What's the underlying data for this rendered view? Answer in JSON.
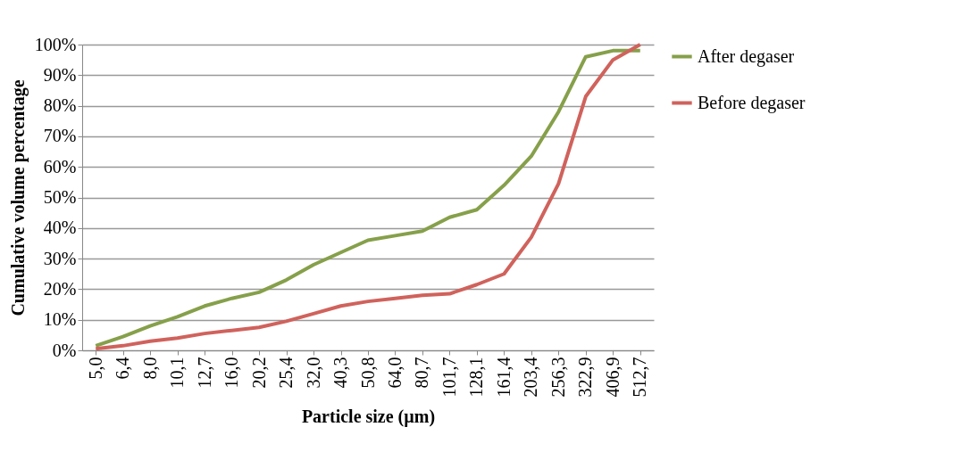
{
  "chart_data": {
    "type": "line",
    "xlabel": "Particle size (µm)",
    "ylabel": "Cumulative volume percentage",
    "categories": [
      "5,0",
      "6,4",
      "8,0",
      "10,1",
      "12,7",
      "16,0",
      "20,2",
      "25,4",
      "32,0",
      "40,3",
      "50,8",
      "64,0",
      "80,7",
      "101,7",
      "128,1",
      "161,4",
      "203,4",
      "256,3",
      "322,9",
      "406,9",
      "512,7"
    ],
    "series": [
      {
        "name": "After degaser",
        "color": "#86a04a",
        "values": [
          1.5,
          4.5,
          8,
          11,
          14.5,
          17,
          19,
          23,
          28,
          32,
          36,
          37.5,
          39,
          43.5,
          46,
          54,
          63.5,
          78,
          96,
          98,
          98
        ]
      },
      {
        "name": "Before degaser",
        "color": "#d0625c",
        "values": [
          0.5,
          1.5,
          3,
          4,
          5.5,
          6.5,
          7.5,
          9.5,
          12,
          14.5,
          16,
          17,
          18,
          18.5,
          21.5,
          25,
          37,
          54.5,
          83,
          95,
          100
        ]
      }
    ],
    "ylim": [
      0,
      100
    ],
    "yticks": [
      {
        "value": 0,
        "label": "0%"
      },
      {
        "value": 10,
        "label": "10%"
      },
      {
        "value": 20,
        "label": "20%"
      },
      {
        "value": 30,
        "label": "30%"
      },
      {
        "value": 40,
        "label": "40%"
      },
      {
        "value": 50,
        "label": "50%"
      },
      {
        "value": 60,
        "label": "60%"
      },
      {
        "value": 70,
        "label": "70%"
      },
      {
        "value": 80,
        "label": "80%"
      },
      {
        "value": 90,
        "label": "90%"
      },
      {
        "value": 100,
        "label": "100%"
      }
    ],
    "grid": "y",
    "legend": "right",
    "line_style": "solid",
    "marker": "none"
  }
}
